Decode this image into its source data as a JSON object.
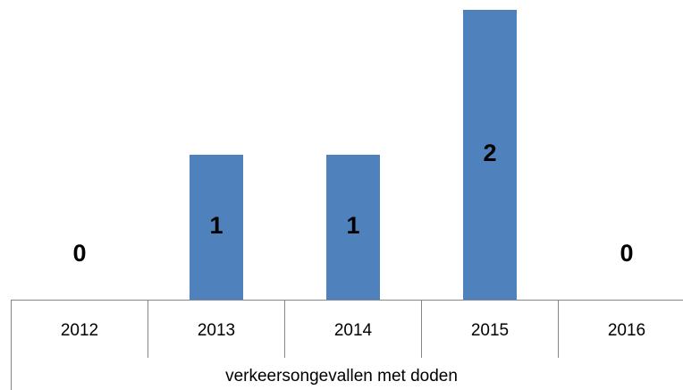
{
  "chart_data": {
    "type": "bar",
    "categories": [
      "2012",
      "2013",
      "2014",
      "2015",
      "2016"
    ],
    "values": [
      0,
      1,
      1,
      2,
      0
    ],
    "color": "#4f81bd",
    "ylim": [
      0,
      2
    ],
    "xlabel": "verkeersongevallen met doden"
  }
}
